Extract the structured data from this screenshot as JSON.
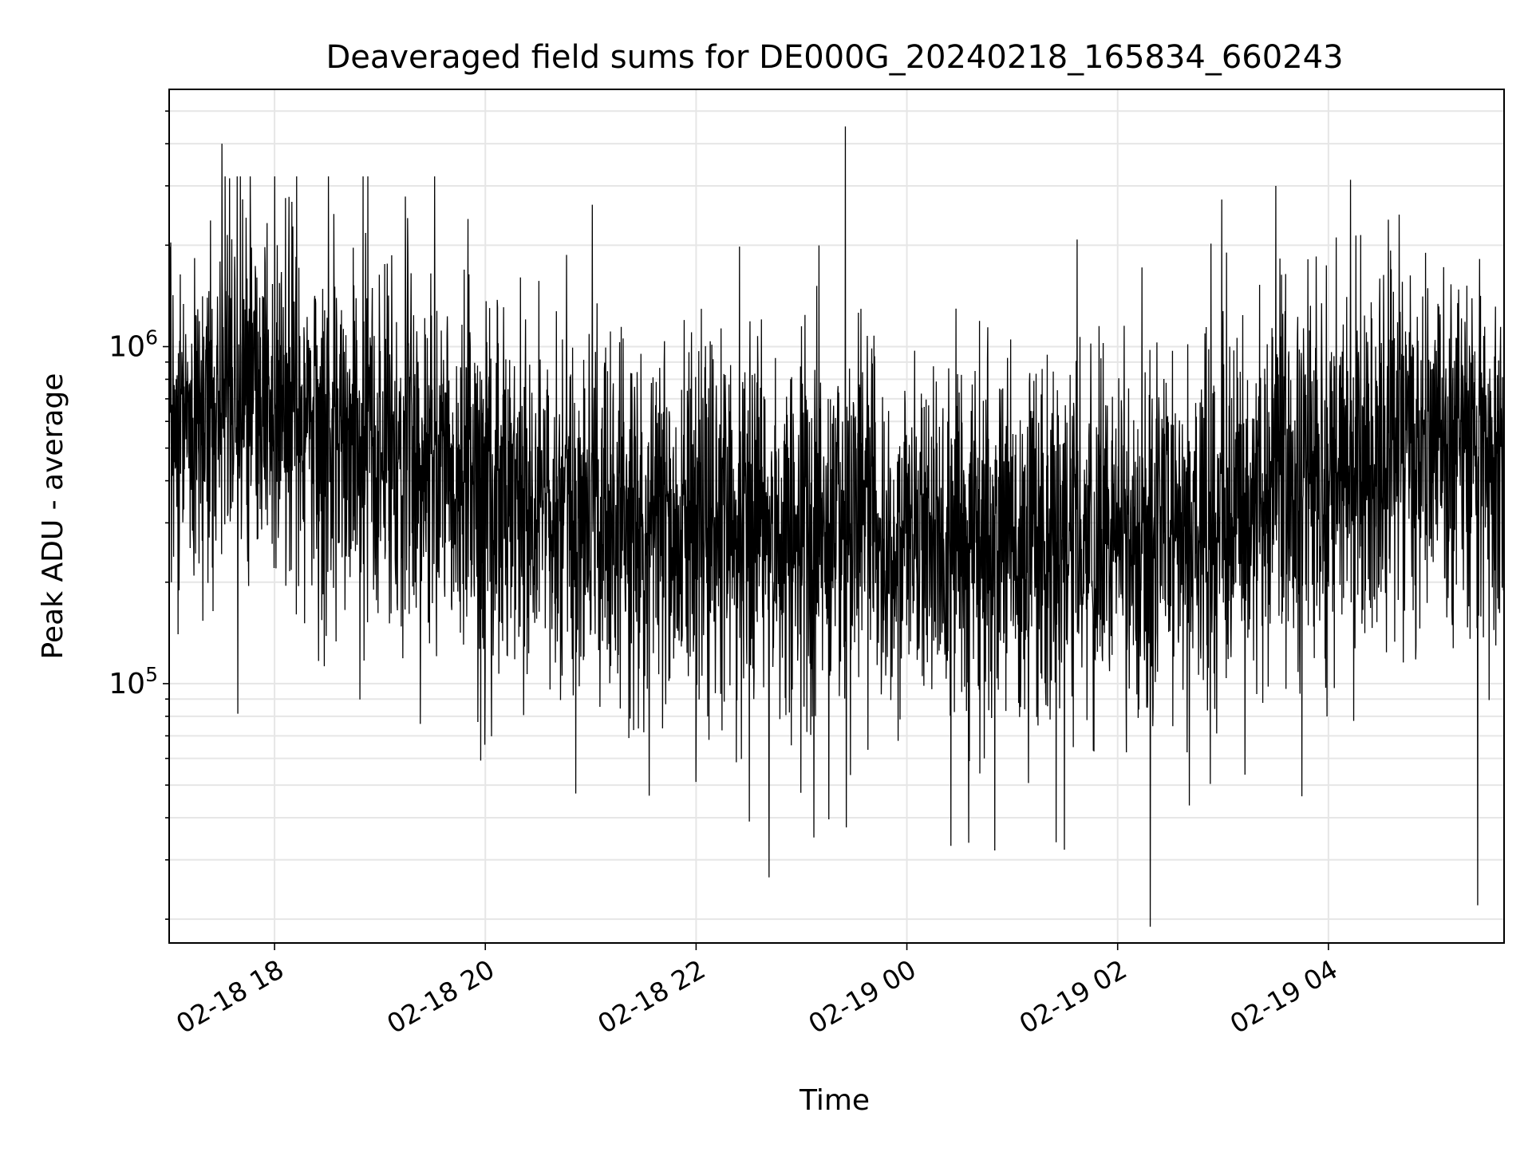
{
  "chart_data": {
    "type": "line",
    "title": "Deaveraged field sums for DE000G_20240218_165834_660243",
    "xlabel": "Time",
    "ylabel": "Peak ADU - average",
    "y_scale": "log",
    "ylim": [
      17000,
      5800000
    ],
    "xlim": [
      "2024-02-18 17:00",
      "2024-02-19 05:40"
    ],
    "x_ticks": [
      "2024-02-18 18:00",
      "2024-02-18 20:00",
      "2024-02-18 22:00",
      "2024-02-19 00:00",
      "2024-02-19 02:00",
      "2024-02-19 04:00"
    ],
    "x_tick_labels": [
      "02-18 18",
      "02-18 20",
      "02-18 22",
      "02-19 00",
      "02-19 02",
      "02-19 04"
    ],
    "y_tick_labels": [
      {
        "base": "10",
        "exp": "5",
        "value": 100000
      },
      {
        "base": "10",
        "exp": "6",
        "value": 1000000
      }
    ],
    "grid": true,
    "line_color": "#000000",
    "grid_color": "#e6e6e6",
    "series_trend": {
      "x": [
        "2024-02-18 17:00",
        "2024-02-18 18:00",
        "2024-02-18 19:00",
        "2024-02-18 20:00",
        "2024-02-18 21:00",
        "2024-02-18 22:00",
        "2024-02-18 23:00",
        "2024-02-19 00:00",
        "2024-02-19 01:00",
        "2024-02-19 02:00",
        "2024-02-19 03:00",
        "2024-02-19 04:00",
        "2024-02-19 05:00",
        "2024-02-19 05:40"
      ],
      "median_y": [
        600000,
        650000,
        550000,
        380000,
        330000,
        300000,
        300000,
        260000,
        250000,
        270000,
        320000,
        420000,
        520000,
        450000
      ]
    },
    "notable_points": [
      {
        "x": "2024-02-18 17:30",
        "y": 4000000
      },
      {
        "x": "2024-02-18 23:25",
        "y": 4500000
      },
      {
        "x": "2024-02-19 03:30",
        "y": 3000000
      },
      {
        "x": "2024-02-19 05:25",
        "y": 22000
      },
      {
        "x": "2024-02-19 00:50",
        "y": 32000
      },
      {
        "x": "2024-02-19 00:25",
        "y": 33000
      }
    ]
  }
}
